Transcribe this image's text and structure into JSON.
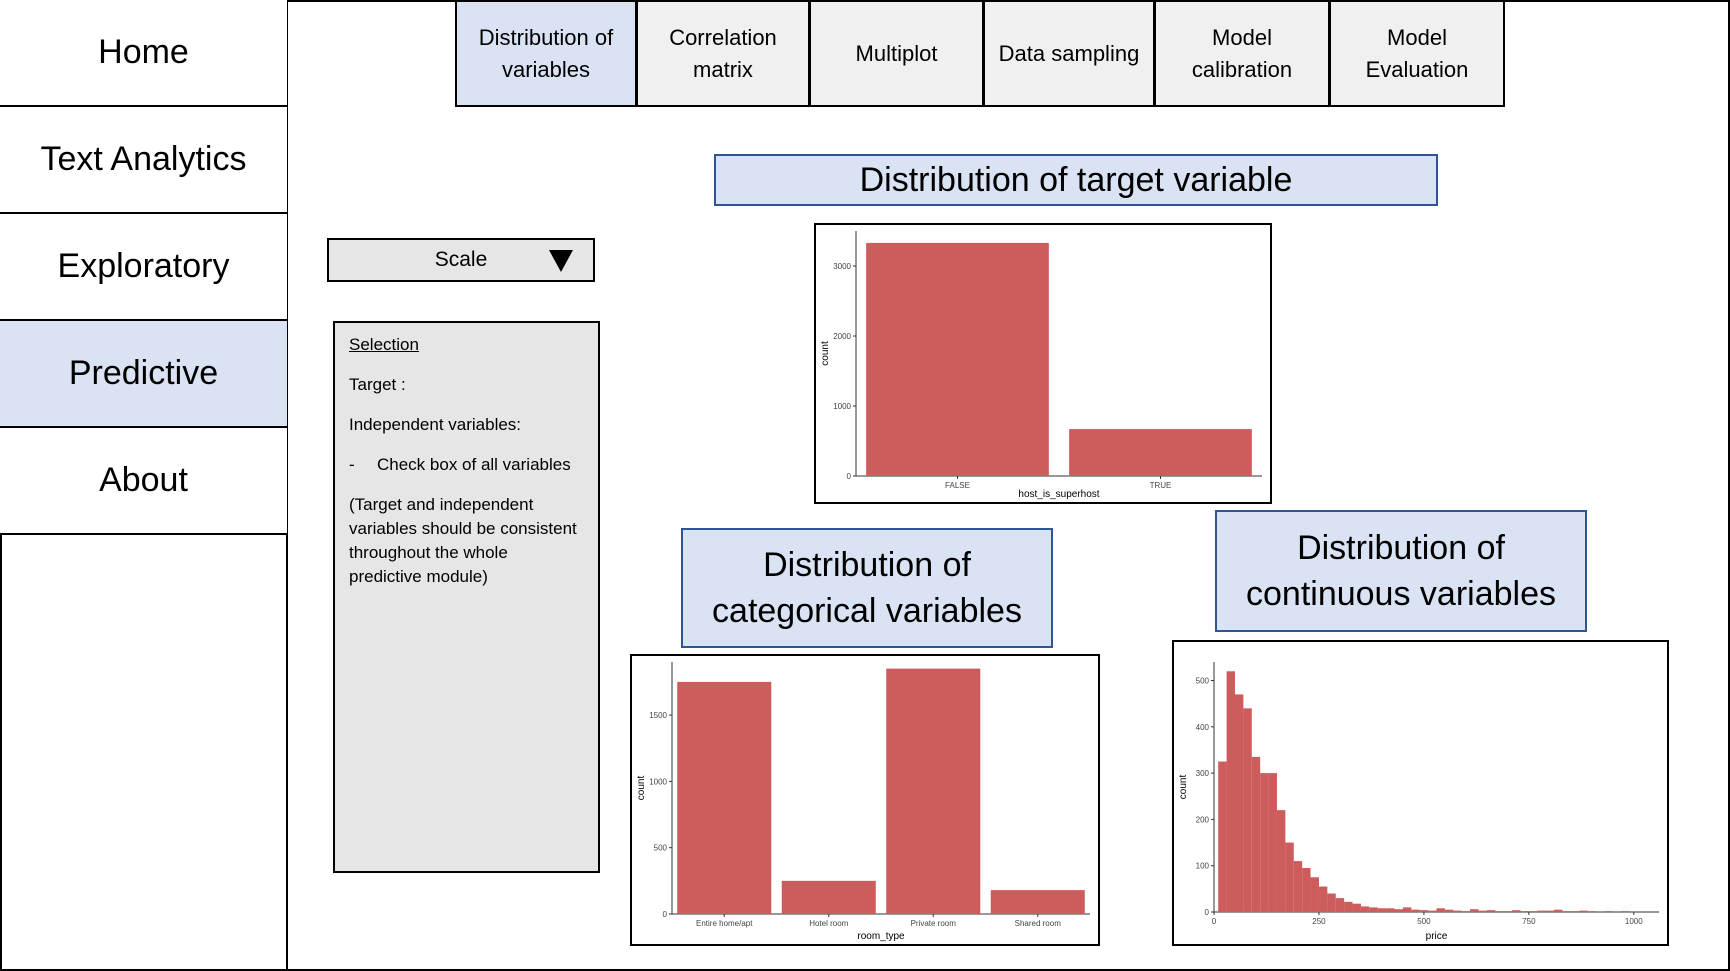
{
  "sidebar": {
    "items": [
      {
        "label": "Home"
      },
      {
        "label": "Text Analytics"
      },
      {
        "label": "Exploratory"
      },
      {
        "label": "Predictive",
        "active": true
      },
      {
        "label": "About"
      }
    ]
  },
  "tabs": [
    {
      "label": "Distribution of variables",
      "active": true
    },
    {
      "label": "Correlation matrix"
    },
    {
      "label": "Multiplot"
    },
    {
      "label": "Data sampling"
    },
    {
      "label": "Model calibration"
    },
    {
      "label": "Model Evaluation"
    }
  ],
  "scale": {
    "label": "Scale",
    "icon": "triangle-down-icon"
  },
  "selection": {
    "heading": "Selection",
    "target": "Target :",
    "independent": "Independent variables:",
    "bullet_dash": "-",
    "bullet": "Check box of all variables",
    "note": "(Target and independent variables should be consistent throughout the whole predictive module)"
  },
  "sections": {
    "target_title": "Distribution of target variable",
    "categorical_title": "Distribution of categorical variables",
    "continuous_title": "Distribution of continuous variables"
  },
  "colors": {
    "bar": "#cd5c5c",
    "title_bg": "#dae3f3",
    "title_border": "#2f5597",
    "active": "#dae3f3",
    "panel": "#e6e6e6",
    "tab": "#f0f0f0"
  },
  "chart_data": [
    {
      "type": "bar",
      "categories": [
        "FALSE",
        "TRUE"
      ],
      "values": [
        3330,
        670
      ],
      "xlabel": "host_is_superhost",
      "ylabel": "count",
      "yticks": [
        0,
        1000,
        2000,
        3000
      ],
      "ylim": [
        0,
        3500
      ]
    },
    {
      "type": "bar",
      "categories": [
        "Entire home/apt",
        "Hotel room",
        "Private room",
        "Shared room"
      ],
      "values": [
        1750,
        250,
        1850,
        180
      ],
      "xlabel": "room_type",
      "ylabel": "count",
      "yticks": [
        0,
        500,
        1000,
        1500
      ],
      "ylim": [
        0,
        1900
      ]
    },
    {
      "type": "bar",
      "subtype": "histogram",
      "bin_starts": [
        10,
        30,
        50,
        70,
        90,
        110,
        130,
        150,
        170,
        190,
        210,
        230,
        250,
        270,
        290,
        310,
        330,
        350,
        370,
        390,
        410,
        430,
        450,
        470,
        490,
        510,
        530,
        550,
        570,
        590,
        610,
        630,
        650,
        670,
        690,
        710,
        730,
        750,
        770,
        790,
        810,
        830,
        850,
        870,
        890,
        910,
        930,
        950,
        970,
        990
      ],
      "bin_width": 20,
      "values": [
        325,
        520,
        470,
        440,
        335,
        300,
        300,
        220,
        150,
        110,
        95,
        75,
        55,
        40,
        30,
        22,
        18,
        12,
        10,
        8,
        8,
        6,
        10,
        5,
        4,
        3,
        8,
        5,
        3,
        2,
        6,
        3,
        4,
        2,
        2,
        4,
        2,
        2,
        3,
        3,
        5,
        2,
        2,
        3,
        2,
        0,
        2,
        0,
        2,
        0
      ],
      "xlabel": "price",
      "ylabel": "count",
      "xticks": [
        0,
        250,
        500,
        750,
        1000
      ],
      "yticks": [
        0,
        100,
        200,
        300,
        400,
        500
      ],
      "xlim": [
        0,
        1060
      ],
      "ylim": [
        0,
        540
      ]
    }
  ]
}
